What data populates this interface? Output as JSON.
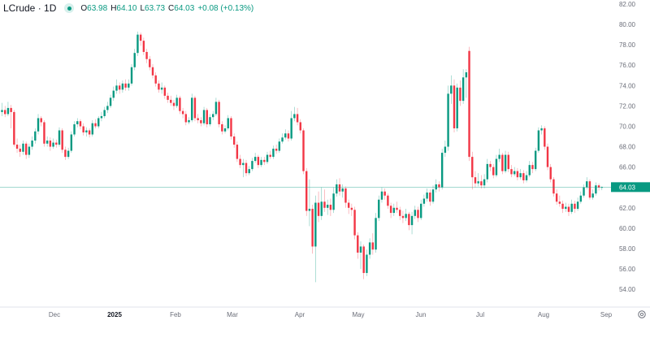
{
  "legend": {
    "symbol": "LCrude · 1D",
    "open_label": "O",
    "open": "63.98",
    "high_label": "H",
    "high": "64.10",
    "low_label": "L",
    "low": "63.73",
    "close_label": "C",
    "close": "64.03",
    "change": "+0.08 (+0.13%)",
    "status_icon": "market-status-dot-icon"
  },
  "colors": {
    "up": "#089981",
    "down": "#f23645",
    "price_line": "#089981",
    "axis_text": "#6a6d78"
  },
  "settings_icon": "gear-icon",
  "chart_data": {
    "type": "candlestick",
    "interval": "1D",
    "ylim": [
      53,
      82.5
    ],
    "y_ticks": [
      "82.00",
      "80.00",
      "78.00",
      "76.00",
      "74.00",
      "72.00",
      "70.00",
      "68.00",
      "66.00",
      "62.00",
      "60.00",
      "58.00",
      "56.00",
      "54.00"
    ],
    "y_tick_values": [
      82,
      80,
      78,
      76,
      74,
      72,
      70,
      68,
      66,
      62,
      60,
      58,
      56,
      54
    ],
    "x_ticks": [
      "Dec",
      "2025",
      "Feb",
      "Mar",
      "Apr",
      "May",
      "Jun",
      "Jul",
      "Aug",
      "Sep"
    ],
    "last_price": 64.03,
    "last_price_label": "64.03",
    "grid": false,
    "candles_ohlc": [
      [
        71.4,
        72.3,
        71.0,
        71.6
      ],
      [
        71.6,
        72.0,
        70.9,
        71.2
      ],
      [
        71.2,
        72.4,
        71.0,
        71.8
      ],
      [
        71.8,
        72.1,
        69.8,
        71.4
      ],
      [
        71.4,
        71.6,
        68.0,
        68.2
      ],
      [
        68.2,
        68.8,
        67.4,
        67.8
      ],
      [
        67.8,
        68.2,
        67.0,
        67.5
      ],
      [
        67.5,
        68.6,
        67.2,
        68.3
      ],
      [
        68.3,
        68.5,
        66.8,
        67.2
      ],
      [
        67.2,
        68.3,
        66.9,
        68.0
      ],
      [
        68.0,
        69.0,
        67.7,
        68.6
      ],
      [
        68.6,
        69.8,
        68.3,
        69.5
      ],
      [
        69.5,
        71.2,
        69.2,
        70.8
      ],
      [
        70.8,
        71.0,
        70.0,
        70.4
      ],
      [
        70.4,
        70.6,
        68.0,
        68.3
      ],
      [
        68.3,
        69.0,
        68.0,
        68.6
      ],
      [
        68.6,
        68.9,
        67.6,
        68.0
      ],
      [
        68.0,
        68.8,
        67.8,
        68.4
      ],
      [
        68.4,
        68.7,
        67.9,
        68.2
      ],
      [
        68.2,
        69.9,
        68.0,
        69.6
      ],
      [
        69.6,
        69.8,
        67.4,
        67.7
      ],
      [
        67.7,
        68.0,
        66.7,
        67.0
      ],
      [
        67.0,
        67.9,
        66.8,
        67.6
      ],
      [
        67.6,
        69.5,
        67.4,
        69.2
      ],
      [
        69.2,
        70.5,
        69.0,
        70.2
      ],
      [
        70.2,
        70.8,
        69.9,
        70.5
      ],
      [
        70.5,
        70.7,
        69.7,
        70.0
      ],
      [
        70.0,
        70.3,
        69.1,
        69.4
      ],
      [
        69.4,
        69.9,
        69.0,
        69.6
      ],
      [
        69.6,
        69.8,
        68.9,
        69.2
      ],
      [
        69.2,
        70.6,
        69.0,
        70.3
      ],
      [
        70.3,
        70.7,
        69.8,
        70.0
      ],
      [
        70.0,
        71.0,
        69.8,
        70.8
      ],
      [
        70.8,
        71.4,
        70.5,
        71.0
      ],
      [
        71.0,
        71.9,
        70.8,
        71.6
      ],
      [
        71.6,
        72.4,
        71.3,
        72.0
      ],
      [
        72.0,
        73.1,
        71.8,
        72.8
      ],
      [
        72.8,
        73.9,
        72.5,
        73.5
      ],
      [
        73.5,
        74.6,
        73.2,
        74.0
      ],
      [
        74.0,
        74.3,
        73.2,
        73.6
      ],
      [
        73.6,
        74.5,
        73.3,
        74.2
      ],
      [
        74.2,
        74.6,
        73.5,
        73.8
      ],
      [
        73.8,
        74.6,
        73.5,
        74.2
      ],
      [
        74.2,
        76.1,
        74.0,
        75.8
      ],
      [
        75.8,
        77.6,
        75.5,
        77.2
      ],
      [
        77.2,
        79.3,
        76.9,
        79.0
      ],
      [
        79.0,
        79.2,
        77.9,
        78.4
      ],
      [
        78.4,
        78.7,
        77.0,
        77.3
      ],
      [
        77.3,
        77.6,
        76.2,
        76.6
      ],
      [
        76.6,
        76.9,
        75.5,
        75.8
      ],
      [
        75.8,
        76.1,
        74.7,
        75.0
      ],
      [
        75.0,
        75.3,
        73.9,
        74.2
      ],
      [
        74.2,
        74.5,
        73.3,
        73.6
      ],
      [
        73.6,
        74.3,
        73.2,
        73.8
      ],
      [
        73.8,
        74.0,
        72.7,
        73.0
      ],
      [
        73.0,
        73.3,
        72.3,
        72.6
      ],
      [
        72.6,
        73.0,
        72.0,
        72.3
      ],
      [
        72.3,
        72.6,
        71.6,
        72.0
      ],
      [
        72.0,
        73.1,
        71.8,
        72.8
      ],
      [
        72.8,
        73.0,
        71.2,
        71.5
      ],
      [
        71.5,
        71.8,
        70.8,
        71.2
      ],
      [
        71.2,
        71.5,
        70.1,
        70.4
      ],
      [
        70.4,
        70.9,
        70.2,
        70.6
      ],
      [
        70.6,
        73.2,
        70.4,
        72.8
      ],
      [
        72.8,
        73.0,
        70.5,
        70.8
      ],
      [
        70.8,
        71.2,
        70.3,
        70.6
      ],
      [
        70.6,
        70.9,
        70.0,
        70.3
      ],
      [
        70.3,
        71.9,
        70.1,
        71.6
      ],
      [
        71.6,
        71.8,
        69.9,
        70.2
      ],
      [
        70.2,
        71.2,
        70.0,
        70.9
      ],
      [
        70.9,
        71.5,
        70.6,
        71.2
      ],
      [
        71.2,
        72.8,
        71.0,
        72.4
      ],
      [
        72.4,
        72.6,
        69.9,
        70.2
      ],
      [
        70.2,
        70.5,
        69.2,
        69.5
      ],
      [
        69.5,
        70.1,
        69.3,
        69.8
      ],
      [
        69.8,
        71.1,
        69.6,
        70.8
      ],
      [
        70.8,
        71.0,
        68.7,
        69.0
      ],
      [
        69.0,
        69.3,
        67.9,
        68.2
      ],
      [
        68.2,
        68.5,
        66.5,
        66.8
      ],
      [
        66.8,
        67.2,
        65.9,
        66.2
      ],
      [
        66.2,
        66.8,
        65.0,
        66.4
      ],
      [
        66.4,
        66.7,
        65.1,
        65.4
      ],
      [
        65.4,
        66.1,
        65.2,
        65.8
      ],
      [
        65.8,
        66.9,
        65.6,
        66.6
      ],
      [
        66.6,
        67.4,
        66.4,
        67.0
      ],
      [
        67.0,
        67.2,
        65.9,
        66.2
      ],
      [
        66.2,
        67.0,
        66.0,
        66.7
      ],
      [
        66.7,
        67.0,
        66.2,
        66.5
      ],
      [
        66.5,
        67.5,
        66.3,
        67.2
      ],
      [
        67.2,
        67.6,
        66.8,
        67.0
      ],
      [
        67.0,
        68.1,
        66.8,
        67.8
      ],
      [
        67.8,
        68.2,
        67.3,
        67.6
      ],
      [
        67.6,
        68.8,
        67.4,
        68.5
      ],
      [
        68.5,
        69.3,
        68.3,
        68.9
      ],
      [
        68.9,
        69.7,
        68.7,
        69.3
      ],
      [
        69.3,
        69.6,
        68.5,
        68.8
      ],
      [
        68.8,
        71.5,
        68.6,
        70.8
      ],
      [
        70.8,
        71.9,
        70.5,
        71.2
      ],
      [
        71.2,
        71.8,
        70.1,
        70.4
      ],
      [
        70.4,
        70.7,
        69.3,
        69.6
      ],
      [
        69.6,
        69.8,
        65.3,
        65.6
      ],
      [
        65.6,
        65.9,
        61.2,
        61.7
      ],
      [
        61.7,
        64.8,
        60.2,
        61.9
      ],
      [
        61.9,
        62.3,
        57.5,
        58.2
      ],
      [
        58.2,
        63.2,
        54.7,
        62.5
      ],
      [
        62.5,
        63.6,
        60.6,
        61.2
      ],
      [
        61.2,
        64.0,
        60.8,
        62.6
      ],
      [
        62.6,
        63.8,
        61.6,
        62.0
      ],
      [
        62.0,
        62.8,
        61.3,
        62.3
      ],
      [
        62.3,
        62.9,
        61.2,
        61.8
      ],
      [
        61.8,
        64.0,
        61.5,
        63.4
      ],
      [
        63.4,
        64.8,
        63.1,
        64.3
      ],
      [
        64.3,
        64.9,
        63.2,
        63.6
      ],
      [
        63.6,
        64.3,
        63.0,
        63.9
      ],
      [
        63.9,
        64.1,
        62.0,
        62.5
      ],
      [
        62.5,
        62.8,
        61.4,
        62.0
      ],
      [
        62.0,
        62.4,
        61.2,
        61.8
      ],
      [
        61.8,
        62.1,
        58.9,
        59.3
      ],
      [
        59.3,
        59.6,
        57.0,
        57.6
      ],
      [
        57.6,
        58.7,
        56.0,
        58.2
      ],
      [
        58.2,
        58.4,
        55.0,
        55.6
      ],
      [
        55.6,
        57.9,
        55.3,
        57.4
      ],
      [
        57.4,
        59.0,
        57.0,
        58.6
      ],
      [
        58.6,
        59.5,
        57.4,
        57.9
      ],
      [
        57.9,
        61.5,
        57.6,
        61.0
      ],
      [
        61.0,
        63.2,
        60.7,
        62.8
      ],
      [
        62.8,
        64.0,
        62.5,
        63.6
      ],
      [
        63.6,
        63.9,
        62.8,
        63.2
      ],
      [
        63.2,
        63.4,
        61.9,
        62.2
      ],
      [
        62.2,
        62.5,
        61.0,
        61.5
      ],
      [
        61.5,
        62.4,
        61.2,
        62.0
      ],
      [
        62.0,
        62.6,
        61.5,
        61.8
      ],
      [
        61.8,
        62.1,
        60.8,
        61.2
      ],
      [
        61.2,
        61.7,
        60.5,
        61.0
      ],
      [
        61.0,
        61.9,
        60.7,
        61.4
      ],
      [
        61.4,
        61.6,
        59.8,
        60.3
      ],
      [
        60.3,
        61.6,
        59.4,
        61.2
      ],
      [
        61.2,
        62.2,
        60.9,
        61.8
      ],
      [
        61.8,
        62.1,
        60.6,
        61.0
      ],
      [
        61.0,
        62.8,
        60.8,
        62.4
      ],
      [
        62.4,
        63.3,
        62.1,
        62.9
      ],
      [
        62.9,
        63.9,
        62.6,
        63.5
      ],
      [
        63.5,
        63.8,
        62.2,
        62.6
      ],
      [
        62.6,
        64.2,
        62.4,
        63.8
      ],
      [
        63.8,
        64.8,
        63.5,
        64.3
      ],
      [
        64.3,
        64.6,
        63.6,
        64.0
      ],
      [
        64.0,
        67.8,
        63.8,
        67.4
      ],
      [
        67.4,
        68.6,
        67.0,
        68.0
      ],
      [
        68.0,
        74.0,
        67.6,
        73.2
      ],
      [
        73.2,
        75.0,
        72.2,
        74.0
      ],
      [
        74.0,
        74.6,
        69.4,
        69.8
      ],
      [
        69.8,
        74.2,
        69.5,
        73.8
      ],
      [
        73.8,
        74.5,
        72.0,
        72.5
      ],
      [
        72.5,
        75.6,
        72.2,
        74.8
      ],
      [
        74.8,
        75.6,
        72.8,
        75.3
      ],
      [
        77.4,
        77.8,
        66.6,
        67.0
      ],
      [
        67.0,
        67.5,
        63.8,
        65.0
      ],
      [
        65.0,
        65.6,
        64.0,
        64.4
      ],
      [
        64.4,
        65.4,
        64.1,
        64.6
      ],
      [
        64.6,
        65.2,
        63.9,
        64.2
      ],
      [
        64.2,
        65.3,
        63.9,
        64.8
      ],
      [
        64.8,
        66.8,
        64.5,
        66.3
      ],
      [
        66.3,
        66.6,
        65.6,
        66.0
      ],
      [
        66.0,
        66.3,
        64.9,
        65.2
      ],
      [
        65.2,
        67.2,
        65.0,
        66.8
      ],
      [
        66.8,
        67.8,
        66.5,
        67.2
      ],
      [
        67.2,
        67.4,
        65.3,
        65.6
      ],
      [
        65.6,
        67.6,
        65.4,
        67.2
      ],
      [
        67.2,
        67.5,
        65.5,
        65.8
      ],
      [
        65.8,
        66.2,
        65.0,
        65.3
      ],
      [
        65.3,
        66.0,
        65.1,
        65.6
      ],
      [
        65.6,
        65.9,
        64.7,
        65.0
      ],
      [
        65.0,
        65.8,
        64.8,
        65.4
      ],
      [
        65.4,
        65.7,
        64.4,
        64.7
      ],
      [
        64.7,
        65.6,
        64.5,
        65.2
      ],
      [
        65.2,
        66.6,
        65.0,
        66.2
      ],
      [
        66.2,
        66.5,
        65.4,
        65.8
      ],
      [
        65.8,
        67.9,
        65.6,
        67.6
      ],
      [
        67.6,
        69.9,
        67.4,
        69.6
      ],
      [
        69.6,
        70.1,
        69.2,
        69.8
      ],
      [
        69.8,
        70.0,
        67.7,
        68.0
      ],
      [
        68.0,
        68.3,
        65.7,
        66.0
      ],
      [
        66.0,
        66.3,
        64.5,
        64.8
      ],
      [
        64.8,
        65.0,
        63.1,
        63.4
      ],
      [
        63.4,
        63.8,
        62.3,
        62.6
      ],
      [
        62.6,
        63.2,
        62.1,
        62.4
      ],
      [
        62.4,
        62.7,
        61.5,
        61.9
      ],
      [
        61.9,
        62.5,
        61.6,
        62.1
      ],
      [
        62.1,
        62.4,
        61.2,
        61.6
      ],
      [
        61.6,
        62.8,
        61.4,
        62.4
      ],
      [
        62.4,
        62.7,
        61.5,
        61.9
      ],
      [
        61.9,
        63.0,
        61.7,
        62.6
      ],
      [
        62.6,
        63.6,
        62.4,
        63.2
      ],
      [
        63.2,
        64.3,
        63.0,
        64.0
      ],
      [
        64.0,
        65.0,
        63.8,
        64.6
      ],
      [
        64.6,
        64.8,
        62.8,
        63.0
      ],
      [
        63.0,
        63.8,
        62.8,
        63.4
      ],
      [
        63.4,
        64.5,
        63.2,
        64.2
      ],
      [
        64.2,
        64.4,
        63.7,
        63.98
      ],
      [
        63.98,
        64.1,
        63.73,
        64.03
      ]
    ]
  }
}
